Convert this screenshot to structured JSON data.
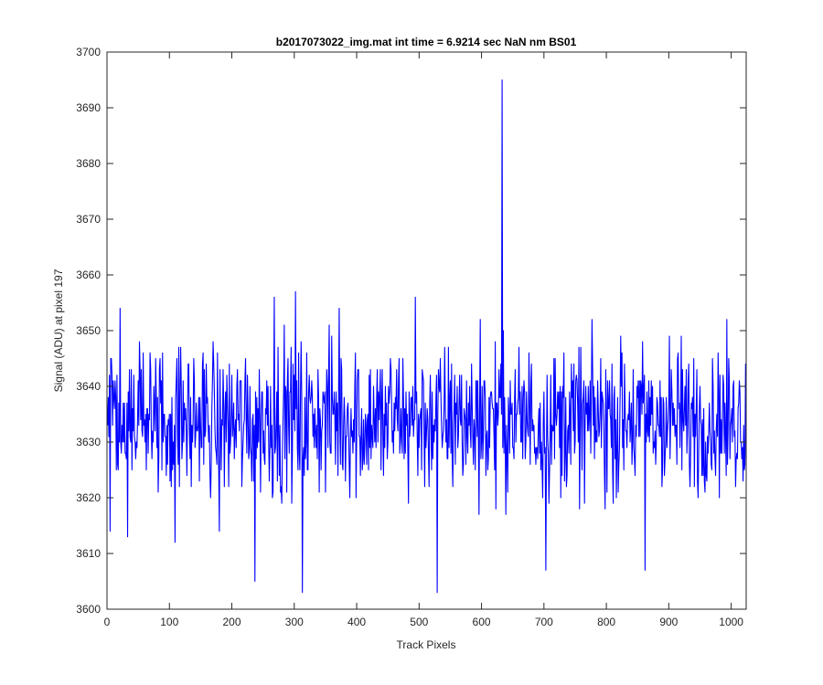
{
  "chart_data": {
    "type": "line",
    "title": "b2017073022_img.mat int time = 6.9214 sec  NaN nm BS01",
    "xlabel": "Track Pixels",
    "ylabel": "Signal (ADU) at pixel 197",
    "xlim": [
      0,
      1024
    ],
    "ylim": [
      3600,
      3700
    ],
    "xticks": [
      0,
      100,
      200,
      300,
      400,
      500,
      600,
      700,
      800,
      900,
      1000
    ],
    "yticks": [
      3600,
      3610,
      3620,
      3630,
      3640,
      3650,
      3660,
      3670,
      3680,
      3690,
      3700
    ],
    "grid": false,
    "line_color": "#0000ff",
    "series": [
      {
        "x_start": 1,
        "x_step": 1,
        "noise_mean": 3632,
        "noise_range": [
          3614,
          3654
        ],
        "n_points": 1024,
        "notable_points": [
          {
            "x": 5,
            "y": 3614
          },
          {
            "x": 21,
            "y": 3654
          },
          {
            "x": 33,
            "y": 3613
          },
          {
            "x": 180,
            "y": 3614
          },
          {
            "x": 109,
            "y": 3612
          },
          {
            "x": 237,
            "y": 3605
          },
          {
            "x": 268,
            "y": 3656
          },
          {
            "x": 302,
            "y": 3657
          },
          {
            "x": 313,
            "y": 3603
          },
          {
            "x": 372,
            "y": 3654
          },
          {
            "x": 494,
            "y": 3656
          },
          {
            "x": 529,
            "y": 3603
          },
          {
            "x": 598,
            "y": 3652
          },
          {
            "x": 633,
            "y": 3695
          },
          {
            "x": 703,
            "y": 3607
          },
          {
            "x": 862,
            "y": 3607
          }
        ]
      }
    ]
  }
}
